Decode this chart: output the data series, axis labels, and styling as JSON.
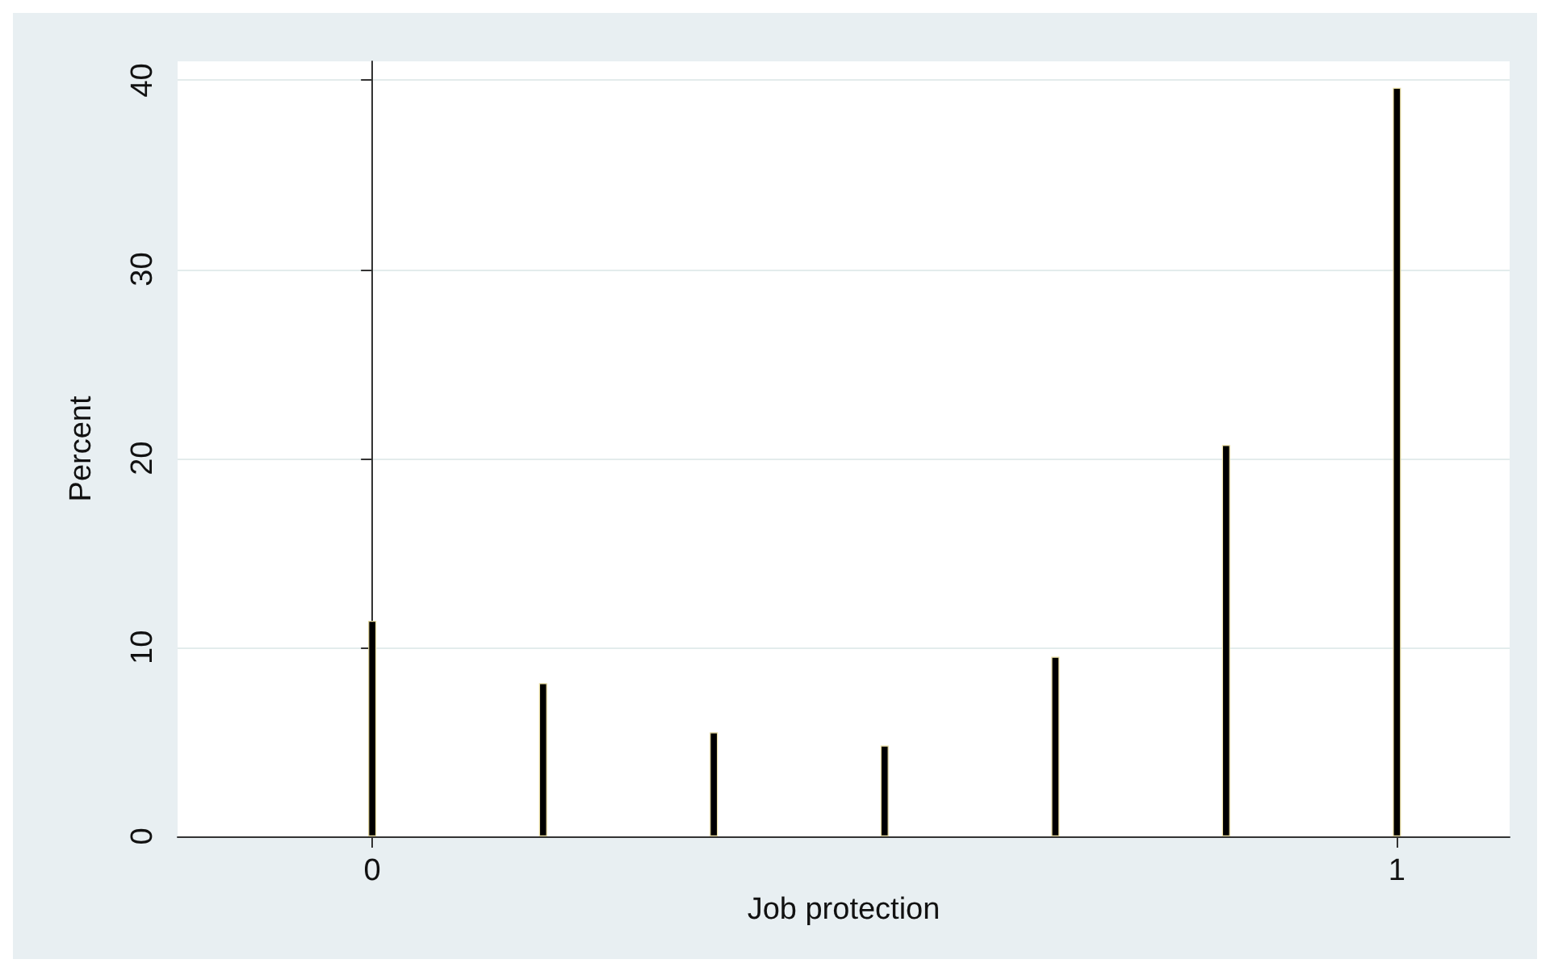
{
  "chart_data": {
    "type": "bar",
    "xlabel": "Job protection",
    "ylabel": "Percent",
    "x": [
      0,
      0.1667,
      0.3333,
      0.5,
      0.6667,
      0.8333,
      1
    ],
    "values": [
      11.4,
      8.1,
      5.5,
      4.8,
      9.5,
      20.7,
      39.6
    ],
    "color": "#000000",
    "xlim": [
      -0.19,
      1.11
    ],
    "xticks": [
      0,
      1
    ],
    "ylim": [
      0,
      41
    ],
    "yticks": [
      0,
      10,
      20,
      30,
      40
    ],
    "grid": "y"
  }
}
